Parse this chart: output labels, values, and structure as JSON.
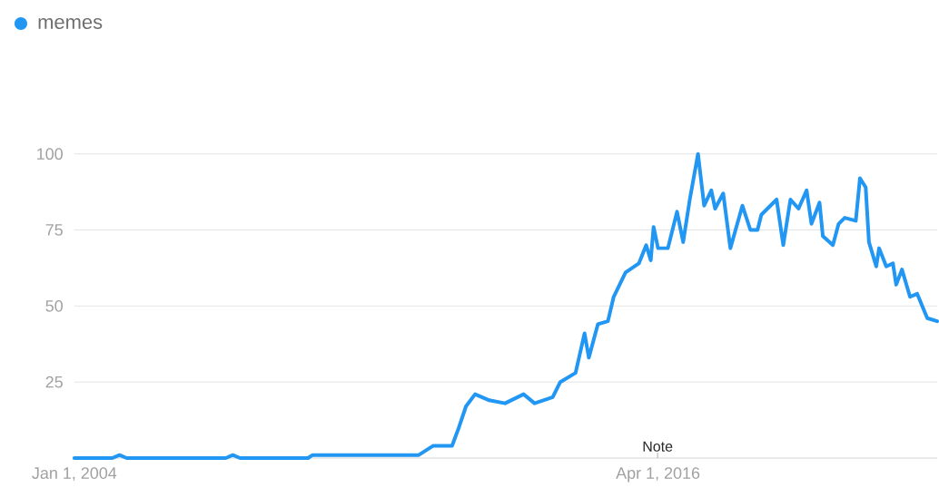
{
  "chart_data": {
    "type": "line",
    "x": [
      "2004-01-01",
      "2004-10-19",
      "2004-12-13",
      "2005-02-06",
      "2007-03-07",
      "2007-04-30",
      "2007-06-24",
      "2008-11-27",
      "2009-01-01",
      "2011-03-25",
      "2011-07-12",
      "2011-12-05",
      "2012-01-26",
      "2012-03-21",
      "2012-05-30",
      "2012-09-16",
      "2013-01-15",
      "2013-06-06",
      "2013-08-29",
      "2014-01-15",
      "2014-03-14",
      "2014-07-09",
      "2014-09-16",
      "2014-10-19",
      "2014-12-27",
      "2015-03-14",
      "2015-04-27",
      "2015-07-27",
      "2015-11-06",
      "2016-01-01",
      "2016-02-05",
      "2016-02-27",
      "2016-04-01",
      "2016-06-16",
      "2016-08-25",
      "2016-10-11",
      "2016-12-01",
      "2017-02-02",
      "2017-03-21",
      "2017-05-15",
      "2017-06-13",
      "2017-08-14",
      "2017-10-08",
      "2018-01-08",
      "2018-03-10",
      "2018-05-04",
      "2018-06-02",
      "2018-09-27",
      "2018-11-17",
      "2019-01-11",
      "2019-03-14",
      "2019-05-15",
      "2019-06-21",
      "2019-08-22",
      "2019-09-16",
      "2019-12-02",
      "2020-01-15",
      "2020-03-02",
      "2020-05-26",
      "2020-06-27",
      "2020-08-10",
      "2020-09-04",
      "2020-10-30",
      "2020-11-21",
      "2021-01-15",
      "2021-03-07",
      "2021-04-01",
      "2021-05-15",
      "2021-07-16",
      "2021-09-09",
      "2021-11-25",
      "2022-02-09"
    ],
    "series": [
      {
        "name": "memes",
        "color": "#2196f3",
        "values": [
          0,
          0,
          1,
          0,
          0,
          1,
          0,
          0,
          1,
          1,
          4,
          4,
          10,
          17,
          21,
          19,
          18,
          21,
          18,
          20,
          25,
          28,
          41,
          33,
          44,
          45,
          53,
          61,
          64,
          70,
          65,
          76,
          69,
          69,
          81,
          71,
          85,
          100,
          83,
          88,
          82,
          87,
          69,
          83,
          75,
          75,
          80,
          85,
          70,
          85,
          82,
          88,
          77,
          84,
          73,
          70,
          77,
          79,
          78,
          92,
          89,
          71,
          63,
          69,
          63,
          64,
          57,
          62,
          53,
          54,
          46,
          45
        ]
      }
    ],
    "xlim": [
      "2004-01-01",
      "2022-02-09"
    ],
    "ylim": [
      0,
      100
    ],
    "xticks": [
      {
        "value": "2004-01-01",
        "label": "Jan 1, 2004"
      },
      {
        "value": "2016-04-01",
        "label": "Apr 1, 2016"
      }
    ],
    "yticks": [
      25,
      50,
      75,
      100
    ],
    "grid": "y",
    "legend": "top left",
    "marker": "none",
    "line_style": "solid",
    "annotations": [
      "Note"
    ]
  }
}
